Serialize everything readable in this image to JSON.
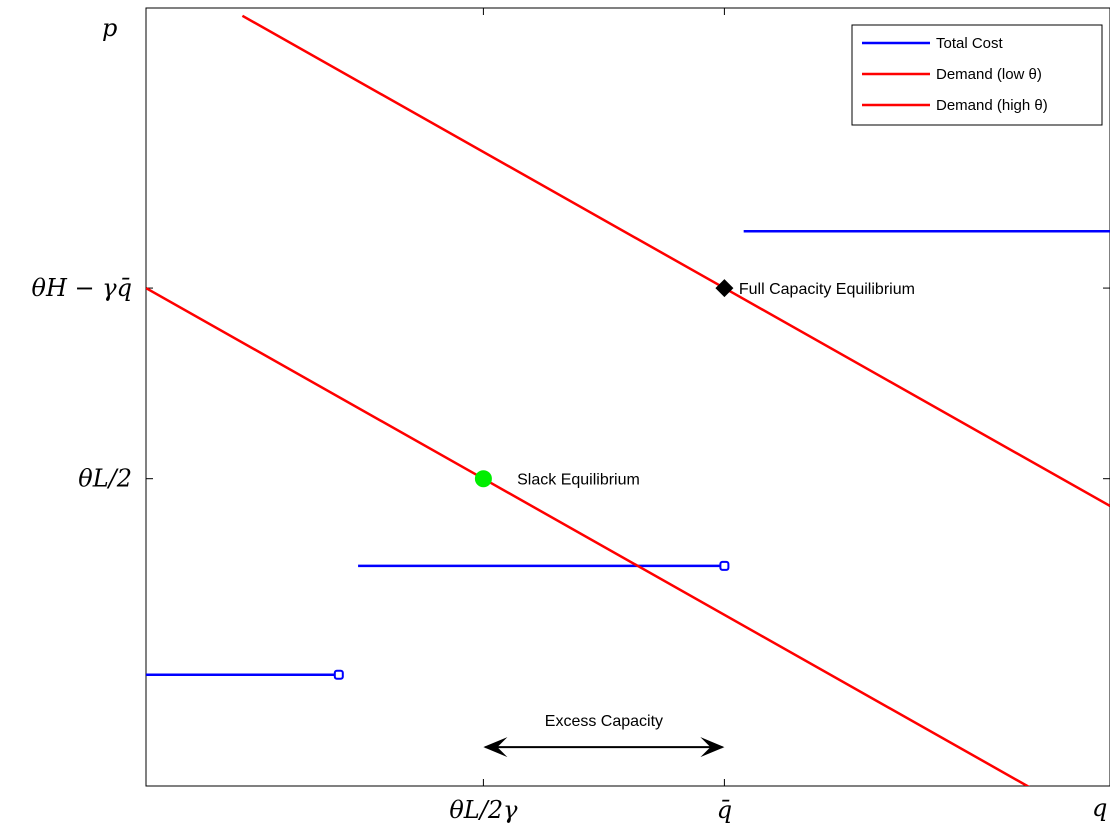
{
  "chart_data": {
    "type": "line",
    "xlim": [
      0,
      1
    ],
    "ylim": [
      0,
      1
    ],
    "axis_labels": {
      "y": "p",
      "x": "q"
    },
    "xticks": [
      {
        "value": 0.35,
        "label": "θL/2γ"
      },
      {
        "value": 0.6,
        "label": "q̄"
      }
    ],
    "yticks": [
      {
        "value": 0.64,
        "label": "θH − γq̄"
      },
      {
        "value": 0.395,
        "label": "θL/2"
      }
    ],
    "series": [
      {
        "name": "Total Cost",
        "color": "#0000ff",
        "segments": [
          {
            "points": [
              [
                0,
                0.143
              ],
              [
                0.2,
                0.143
              ]
            ],
            "open_end": true
          },
          {
            "points": [
              [
                0.22,
                0.283
              ],
              [
                0.6,
                0.283
              ]
            ],
            "open_end": true
          },
          {
            "points": [
              [
                0.62,
                0.713
              ],
              [
                1.0,
                0.713
              ]
            ],
            "open_end": false
          }
        ]
      },
      {
        "name": "Demand (low θ)",
        "color": "#ff0000",
        "points": [
          [
            0,
            0.64
          ],
          [
            0.35,
            0.395
          ],
          [
            1.0,
            -0.06
          ]
        ]
      },
      {
        "name": "Demand (high θ)",
        "color": "#ff0000",
        "points": [
          [
            0.1,
            0.99
          ],
          [
            0.6,
            0.64
          ],
          [
            1.0,
            0.36
          ]
        ]
      }
    ],
    "markers": [
      {
        "name": "Slack Equilibrium",
        "x": 0.35,
        "y": 0.395,
        "shape": "circle",
        "color": "#00ee00"
      },
      {
        "name": "Full Capacity Equilibrium",
        "x": 0.6,
        "y": 0.64,
        "shape": "diamond",
        "color": "#000000"
      }
    ],
    "annotations": [
      {
        "text": "Slack Equilibrium",
        "x": 0.385,
        "y": 0.395
      },
      {
        "text": "Full Capacity Equilibrium",
        "x": 0.615,
        "y": 0.64
      },
      {
        "text": "Excess Capacity",
        "x": 0.475,
        "y": 0.085
      }
    ],
    "double_arrow": {
      "x_from": 0.35,
      "x_to": 0.6,
      "y": 0.05
    },
    "legend": {
      "position": "top-right",
      "entries": [
        "Total Cost",
        "Demand (low θ)",
        "Demand (high θ)"
      ]
    },
    "grid": false
  }
}
